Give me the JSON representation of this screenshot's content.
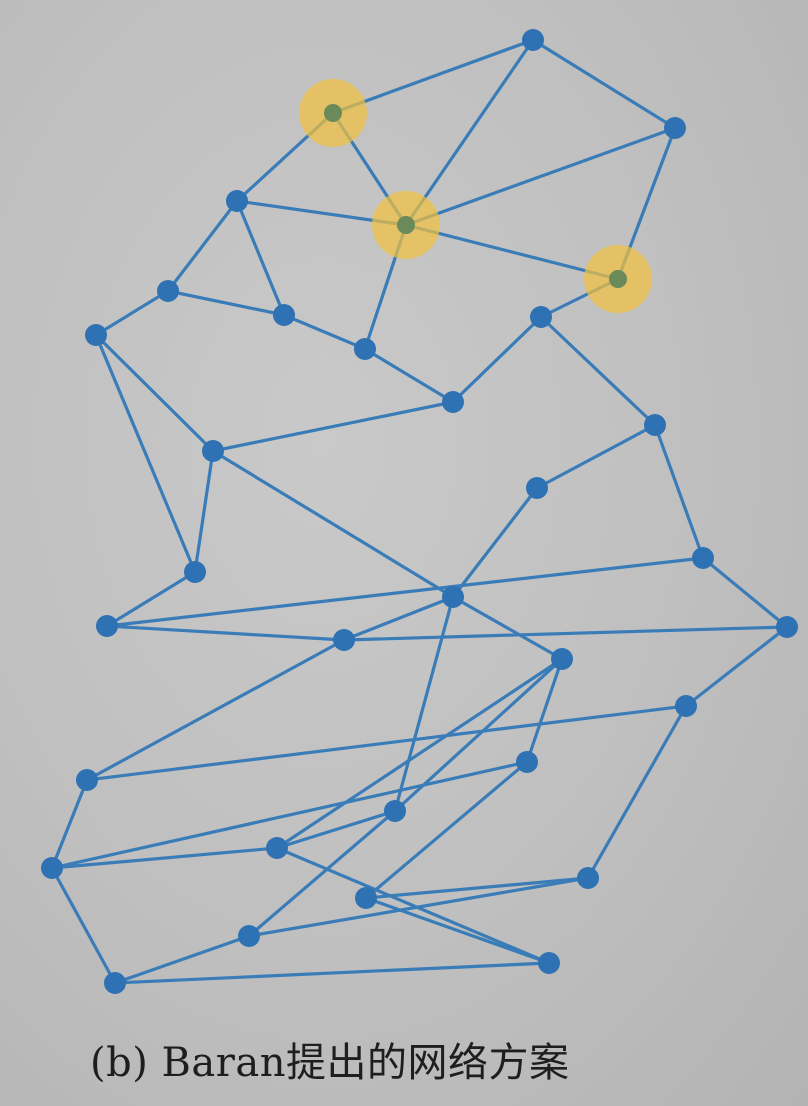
{
  "figure": {
    "caption": "(b) Baran提出的网络方案",
    "edge_color": "#3a7cb8",
    "node_color": "#2f72b3",
    "highlight_color": "#f0c040"
  },
  "network": {
    "nodes": [
      {
        "id": "n1",
        "highlighted": false
      },
      {
        "id": "n2",
        "highlighted": true
      },
      {
        "id": "n3",
        "highlighted": false
      },
      {
        "id": "n4",
        "highlighted": false
      },
      {
        "id": "n5",
        "highlighted": true
      },
      {
        "id": "n6",
        "highlighted": true
      },
      {
        "id": "n7",
        "highlighted": false
      },
      {
        "id": "n8",
        "highlighted": false
      },
      {
        "id": "n9",
        "highlighted": false
      },
      {
        "id": "n10",
        "highlighted": false
      },
      {
        "id": "n11",
        "highlighted": false
      },
      {
        "id": "n12",
        "highlighted": false
      },
      {
        "id": "n13",
        "highlighted": false
      },
      {
        "id": "n14",
        "highlighted": false
      },
      {
        "id": "n15",
        "highlighted": false
      },
      {
        "id": "n16",
        "highlighted": false
      },
      {
        "id": "n17",
        "highlighted": false
      },
      {
        "id": "n18",
        "highlighted": false
      },
      {
        "id": "n19",
        "highlighted": false
      },
      {
        "id": "n20",
        "highlighted": false
      },
      {
        "id": "n21",
        "highlighted": false
      },
      {
        "id": "n22",
        "highlighted": false
      },
      {
        "id": "n23",
        "highlighted": false
      },
      {
        "id": "n24",
        "highlighted": false
      },
      {
        "id": "n25",
        "highlighted": false
      },
      {
        "id": "n26",
        "highlighted": false
      },
      {
        "id": "n27",
        "highlighted": false
      },
      {
        "id": "n28",
        "highlighted": false
      },
      {
        "id": "n29",
        "highlighted": false
      },
      {
        "id": "n30",
        "highlighted": false
      },
      {
        "id": "n31",
        "highlighted": false
      },
      {
        "id": "n32",
        "highlighted": false
      },
      {
        "id": "n33",
        "highlighted": false
      }
    ],
    "edges": [
      [
        "n1",
        "n2"
      ],
      [
        "n1",
        "n5"
      ],
      [
        "n1",
        "n3"
      ],
      [
        "n2",
        "n4"
      ],
      [
        "n2",
        "n5"
      ],
      [
        "n3",
        "n5"
      ],
      [
        "n3",
        "n6"
      ],
      [
        "n4",
        "n7"
      ],
      [
        "n4",
        "n8"
      ],
      [
        "n4",
        "n5"
      ],
      [
        "n5",
        "n6"
      ],
      [
        "n5",
        "n9"
      ],
      [
        "n6",
        "n10"
      ],
      [
        "n7",
        "n8"
      ],
      [
        "n7",
        "n11"
      ],
      [
        "n8",
        "n9"
      ],
      [
        "n9",
        "n12"
      ],
      [
        "n10",
        "n12"
      ],
      [
        "n10",
        "n13"
      ],
      [
        "n11",
        "n14"
      ],
      [
        "n11",
        "n17"
      ],
      [
        "n12",
        "n14"
      ],
      [
        "n13",
        "n15"
      ],
      [
        "n13",
        "n16"
      ],
      [
        "n14",
        "n18"
      ],
      [
        "n14",
        "n17"
      ],
      [
        "n15",
        "n18"
      ],
      [
        "n16",
        "n19"
      ],
      [
        "n16",
        "n20"
      ],
      [
        "n17",
        "n19"
      ],
      [
        "n18",
        "n21"
      ],
      [
        "n18",
        "n22"
      ],
      [
        "n18",
        "n26"
      ],
      [
        "n19",
        "n21"
      ],
      [
        "n20",
        "n21"
      ],
      [
        "n20",
        "n23"
      ],
      [
        "n21",
        "n24"
      ],
      [
        "n22",
        "n26"
      ],
      [
        "n22",
        "n25"
      ],
      [
        "n22",
        "n27"
      ],
      [
        "n23",
        "n24"
      ],
      [
        "n23",
        "n29"
      ],
      [
        "n24",
        "n28"
      ],
      [
        "n25",
        "n28"
      ],
      [
        "n25",
        "n30"
      ],
      [
        "n26",
        "n27"
      ],
      [
        "n26",
        "n31"
      ],
      [
        "n27",
        "n28"
      ],
      [
        "n27",
        "n32"
      ],
      [
        "n28",
        "n33"
      ],
      [
        "n29",
        "n30"
      ],
      [
        "n29",
        "n31"
      ],
      [
        "n30",
        "n32"
      ],
      [
        "n31",
        "n33"
      ],
      [
        "n32",
        "n33"
      ]
    ]
  }
}
